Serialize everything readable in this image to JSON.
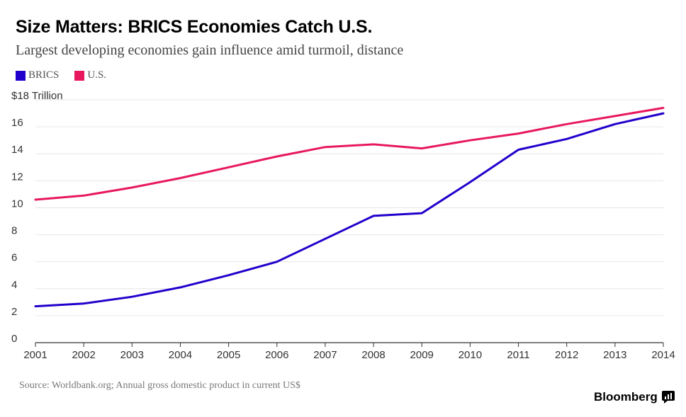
{
  "title": "Size Matters: BRICS Economies Catch U.S.",
  "subtitle": "Largest developing economies gain influence amid turmoil, distance",
  "source": "Source: Worldbank.org; Annual gross domestic product in current US$",
  "brand": "Bloomberg",
  "colors": {
    "brics": "#2200cc",
    "us": "#e8185e",
    "grid": "#e6e6e6",
    "axis": "#333333"
  },
  "chart_data": {
    "type": "line",
    "x": [
      "2001",
      "2002",
      "2003",
      "2004",
      "2005",
      "2006",
      "2007",
      "2008",
      "2009",
      "2010",
      "2011",
      "2012",
      "2013",
      "2014"
    ],
    "series": [
      {
        "name": "BRICS",
        "values": [
          2.7,
          2.9,
          3.4,
          4.1,
          5.0,
          6.0,
          7.7,
          9.4,
          9.6,
          11.9,
          14.3,
          15.1,
          16.2,
          17.0
        ]
      },
      {
        "name": "U.S.",
        "values": [
          10.6,
          10.9,
          11.5,
          12.2,
          13.0,
          13.8,
          14.5,
          14.7,
          14.4,
          15.0,
          15.5,
          16.2,
          16.8,
          17.4
        ]
      }
    ],
    "yticks": [
      "0",
      "2",
      "4",
      "6",
      "8",
      "10",
      "12",
      "14",
      "16",
      "$18 Trillion"
    ],
    "ylim": [
      0,
      18
    ],
    "grid": true,
    "legend_position": "top-left"
  }
}
